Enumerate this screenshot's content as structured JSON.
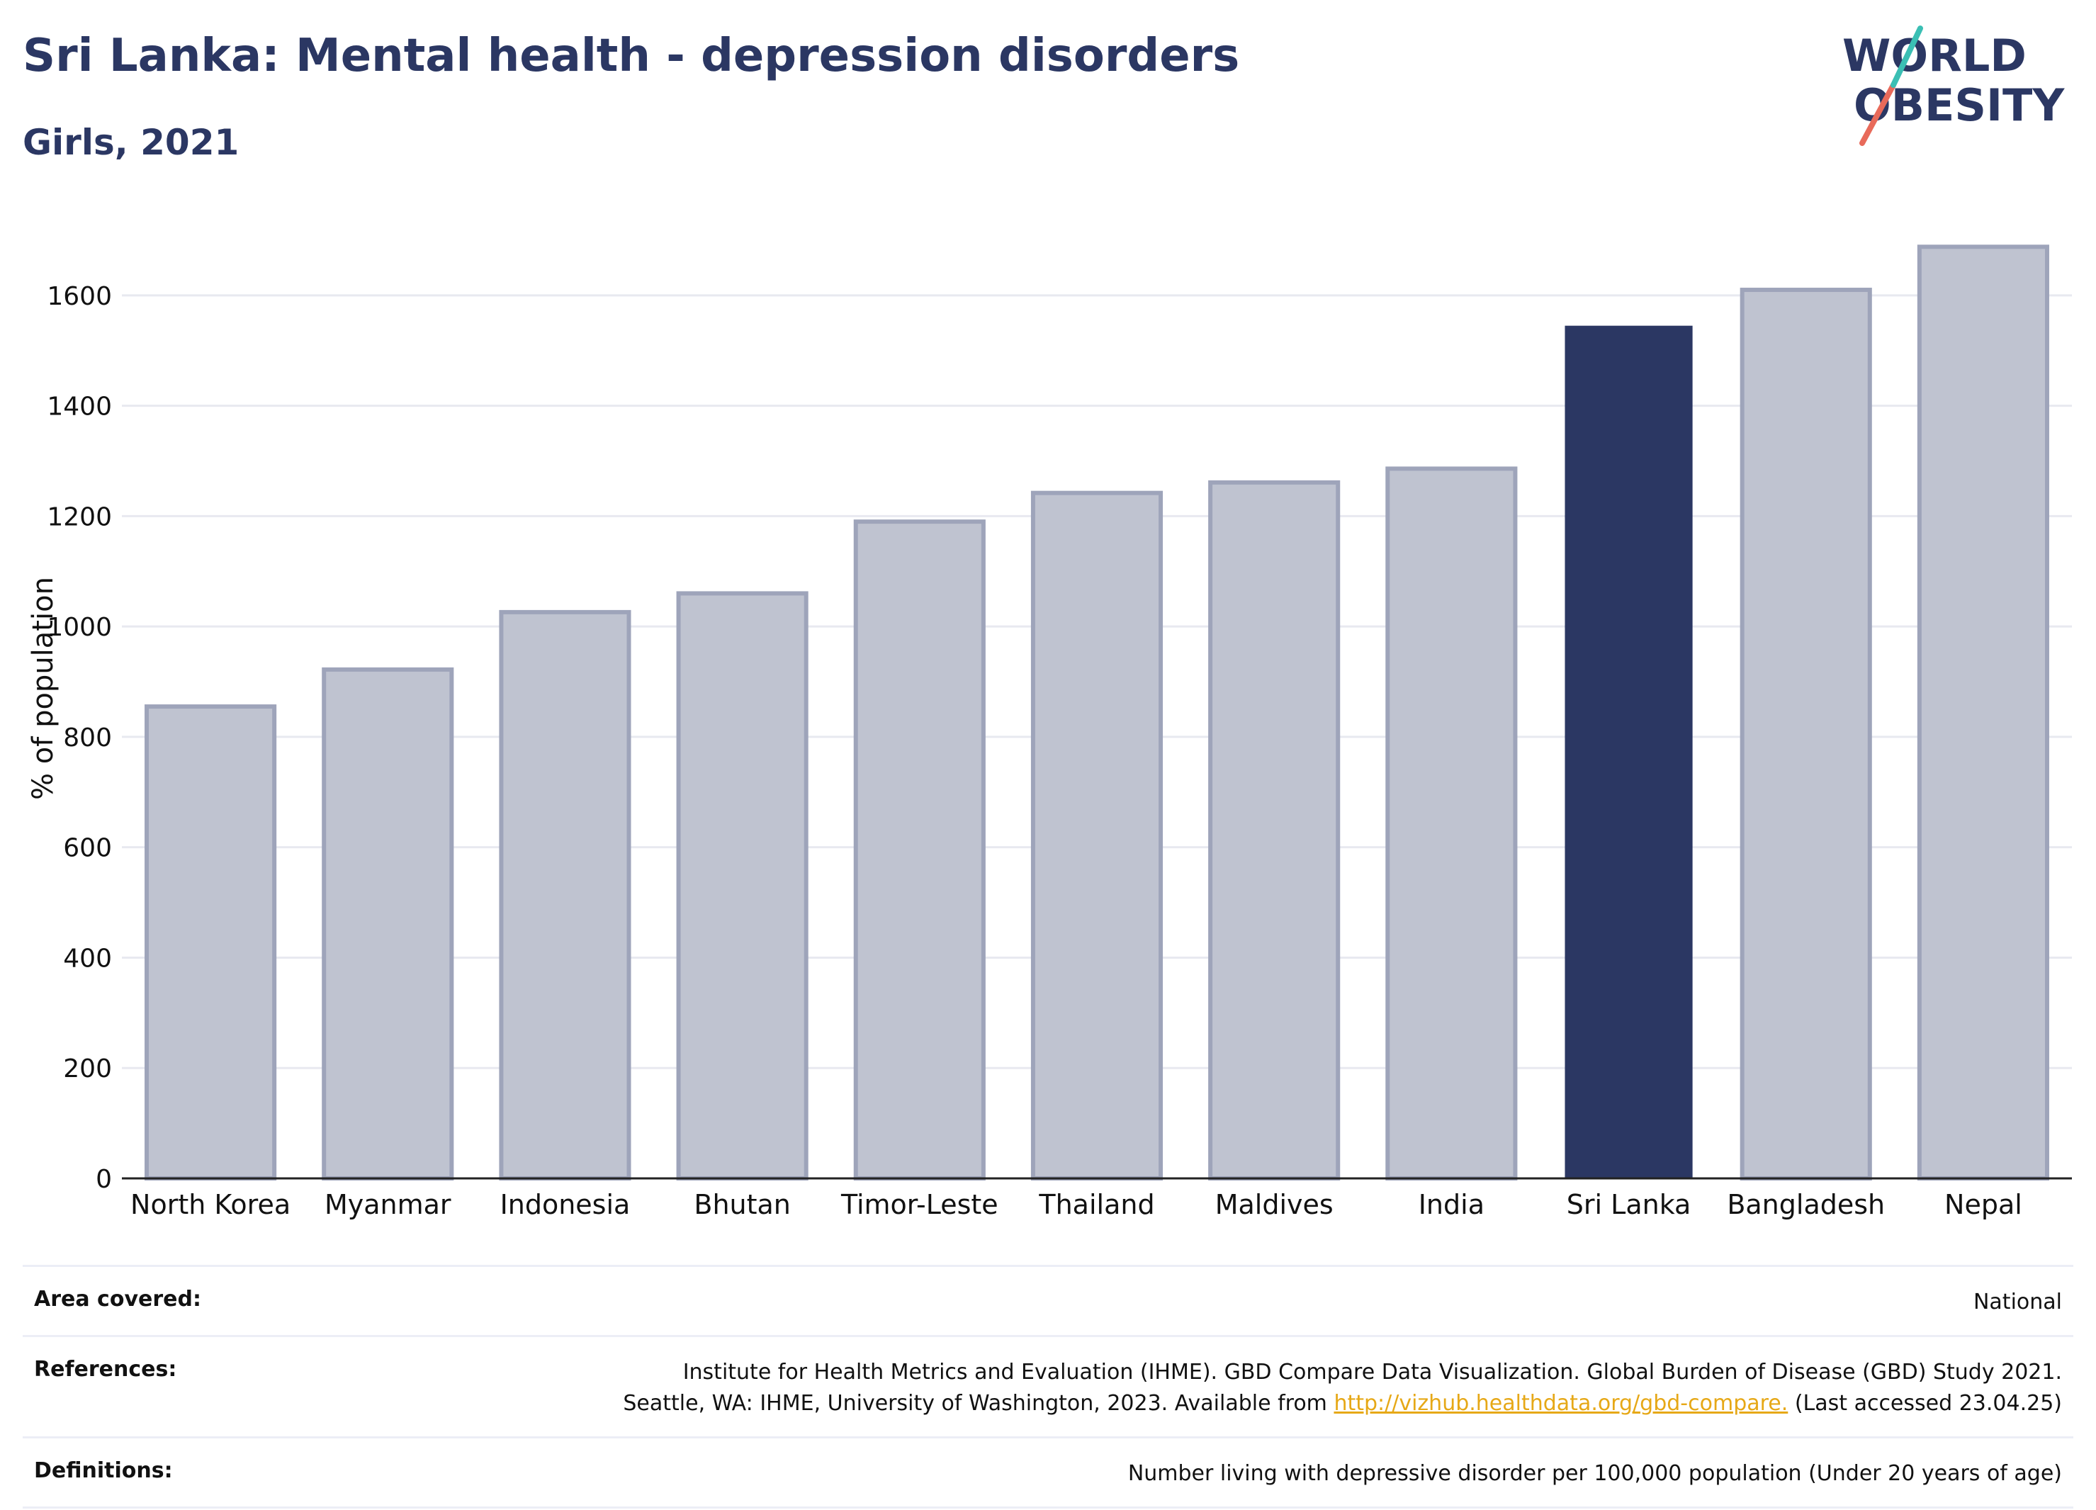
{
  "header": {
    "title": "Sri Lanka: Mental health - depression disorders",
    "subtitle": "Girls, 2021"
  },
  "logo": {
    "line1": "WORLD",
    "line2": "OBESITY",
    "accent_colors": [
      "#3bbfb4",
      "#e86a5a"
    ]
  },
  "chart_data": {
    "type": "bar",
    "categories": [
      "North Korea",
      "Myanmar",
      "Indonesia",
      "Bhutan",
      "Timor-Leste",
      "Thailand",
      "Maldives",
      "India",
      "Sri Lanka",
      "Bangladesh",
      "Nepal"
    ],
    "values": [
      855,
      922,
      1026,
      1060,
      1190,
      1242,
      1261,
      1286,
      1545,
      1610,
      1688
    ],
    "highlight": "Sri Lanka",
    "ylabel": "% of population",
    "xlabel": "",
    "ylim": [
      0,
      1750
    ],
    "yticks": [
      0,
      200,
      400,
      600,
      800,
      1000,
      1200,
      1400,
      1600
    ],
    "grid": true,
    "colors": {
      "bar_fill": "#bfc3d0",
      "bar_stroke": "#9ea4ba",
      "highlight": "#2b3763",
      "grid": "#e8e9f0",
      "axis": "#222222"
    }
  },
  "meta": {
    "area_label": "Area covered:",
    "area_value": "National",
    "references_label": "References:",
    "references_line1": "Institute for Health Metrics and Evaluation (IHME). GBD Compare Data Visualization. Global Burden of Disease (GBD) Study 2021.",
    "references_line2_pre": "Seattle, WA: IHME, University of Washington, 2023. Available from ",
    "references_link": "http://vizhub.healthdata.org/gbd-compare.",
    "references_line2_post": " (Last accessed 23.04.25)",
    "definitions_label": "Definitions:",
    "definitions_value": "Number living with depressive disorder per 100,000 population (Under 20 years of age)"
  }
}
